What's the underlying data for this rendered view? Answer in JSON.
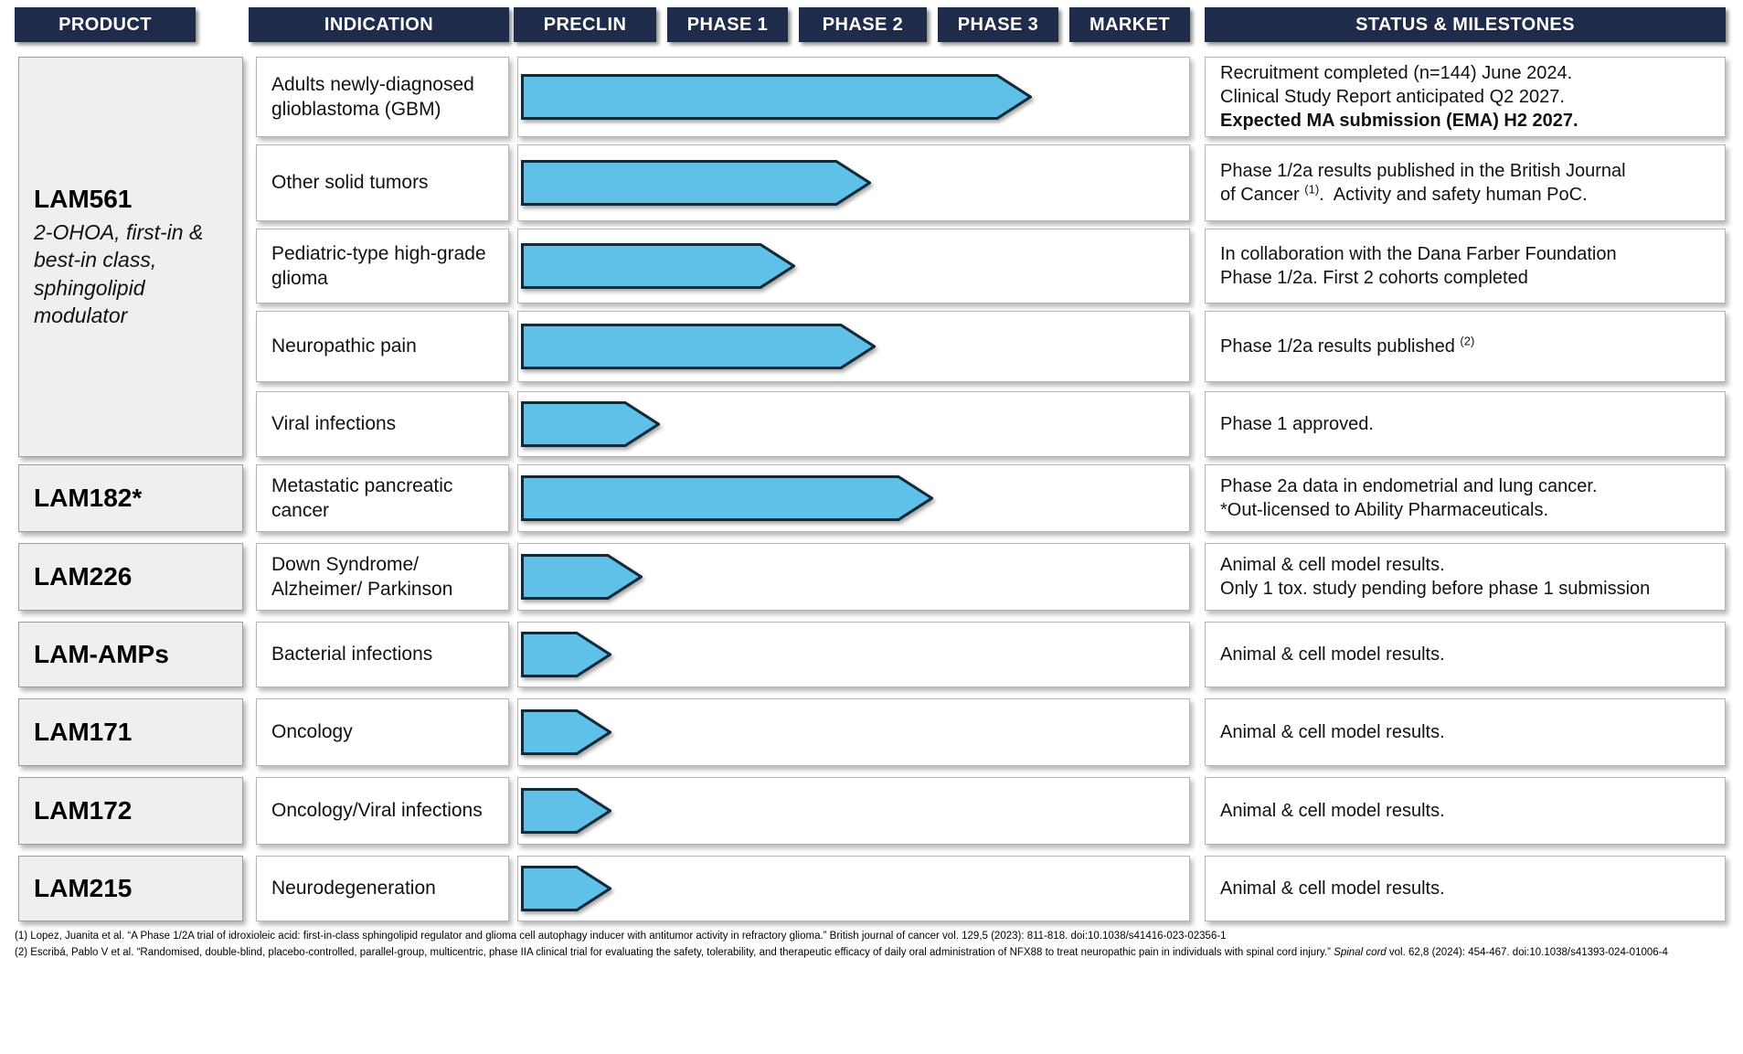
{
  "header": {
    "columns": [
      {
        "key": "product",
        "label": "PRODUCT"
      },
      {
        "key": "indication",
        "label": "INDICATION"
      },
      {
        "key": "preclin",
        "label": "PRECLIN"
      },
      {
        "key": "phase1",
        "label": "PHASE 1"
      },
      {
        "key": "phase2",
        "label": "PHASE 2"
      },
      {
        "key": "phase3",
        "label": "PHASE 3"
      },
      {
        "key": "market",
        "label": "MARKET"
      },
      {
        "key": "status",
        "label": "STATUS & MILESTONES"
      }
    ]
  },
  "products": [
    {
      "name": "LAM561",
      "subtitle": "2-OHOA, first-in & best-in class, sphingolipid modulator",
      "rows": [
        0,
        4
      ]
    },
    {
      "name": "LAM182*",
      "rows": [
        5,
        5
      ]
    },
    {
      "name": "LAM226",
      "rows": [
        6,
        6
      ]
    },
    {
      "name": "LAM-AMPs",
      "rows": [
        7,
        7
      ]
    },
    {
      "name": "LAM171",
      "rows": [
        8,
        8
      ]
    },
    {
      "name": "LAM172",
      "rows": [
        9,
        9
      ]
    },
    {
      "name": "LAM215",
      "rows": [
        10,
        10
      ]
    }
  ],
  "rows": [
    {
      "indication": "Adults newly-diagnosed glioblastoma (GBM)",
      "status": [
        [
          {
            "text": "Recruitment completed (n=144) June 2024."
          }
        ],
        [
          {
            "text": "Clinical Study Report anticipated Q2 2027."
          }
        ],
        [
          {
            "text": "Expected MA submission (EMA) H2 2027.",
            "bold": true
          }
        ]
      ]
    },
    {
      "indication": "Other solid tumors",
      "status": [
        [
          {
            "text": "Phase 1/2a results published in the British Journal"
          }
        ],
        [
          {
            "text": "of Cancer "
          },
          {
            "text": "(1)",
            "sup": true
          },
          {
            "text": ".  Activity and safety human PoC."
          }
        ]
      ]
    },
    {
      "indication": "Pediatric-type high-grade glioma",
      "status": [
        [
          {
            "text": "In collaboration with the Dana Farber Foundation"
          }
        ],
        [
          {
            "text": "Phase 1/2a. First 2 cohorts completed"
          }
        ]
      ]
    },
    {
      "indication": "Neuropathic pain",
      "status": [
        [
          {
            "text": "Phase 1/2a results published "
          },
          {
            "text": "(2)",
            "sup": true
          }
        ]
      ]
    },
    {
      "indication": "Viral infections",
      "status": [
        [
          {
            "text": "Phase 1 approved."
          }
        ]
      ]
    },
    {
      "indication": "Metastatic pancreatic cancer",
      "status": [
        [
          {
            "text": "Phase 2a data in endometrial and lung cancer."
          }
        ],
        [
          {
            "text": "*Out-licensed to Ability Pharmaceuticals."
          }
        ]
      ]
    },
    {
      "indication": "Down Syndrome/ Alzheimer/ Parkinson",
      "status": [
        [
          {
            "text": "Animal & cell model results."
          }
        ],
        [
          {
            "text": "Only 1 tox. study pending before phase 1 submission"
          }
        ]
      ]
    },
    {
      "indication": "Bacterial infections",
      "status": [
        [
          {
            "text": "Animal & cell model results."
          }
        ]
      ]
    },
    {
      "indication": "Oncology",
      "status": [
        [
          {
            "text": "Animal & cell model results."
          }
        ]
      ]
    },
    {
      "indication": "Oncology/Viral infections",
      "status": [
        [
          {
            "text": "Animal & cell model results."
          }
        ]
      ]
    },
    {
      "indication": "Neurodegeneration",
      "status": [
        [
          {
            "text": "Animal & cell model results."
          }
        ]
      ]
    }
  ],
  "footnotes": [
    [
      {
        "text": "(1) Lopez, Juanita et al. “A Phase 1/2A trial of idroxioleic acid: first-in-class sphingolipid regulator and glioma cell autophagy inducer with antitumor activity in refractory glioma.” British journal of cancer vol. 129,5 (2023): 811-818. doi:10.1038/s41416-023-02356-1"
      }
    ],
    [
      {
        "text": "(2) Escribá, Pablo V et al. “Randomised, double-blind, placebo-controlled, parallel-group, multicentric, phase IIA clinical trial for evaluating the safety, tolerability, and therapeutic efficacy of daily oral administration of NFX88 to treat neuropathic pain in individuals with spinal cord injury.” "
      },
      {
        "text": "Spinal cord",
        "italic": true
      },
      {
        "text": " vol. 62,8 (2024): 454-467. doi:10.1038/s41393-024-01006-4"
      }
    ]
  ],
  "colors": {
    "header_bg": "#1F2B4A",
    "arrow_fill": "#5FC0E8",
    "arrow_stroke": "#102A3C",
    "product_box_bg": "#EFEFEF",
    "box_border": "#B5B5B5"
  },
  "chart_data": {
    "type": "bar",
    "title": "Clinical development pipeline by phase",
    "categories": [
      "PRECLIN",
      "PHASE 1",
      "PHASE 2",
      "PHASE 3",
      "MARKET"
    ],
    "value_scale": "phases completed: 1=PRECLIN done, 2=PHASE 1 done, 3=PHASE 2 done, 4=PHASE 3 done, 5=MARKET",
    "legend_position": "none",
    "grid": false,
    "series": [
      {
        "product": "LAM561",
        "indication": "Adults newly-diagnosed glioblastoma (GBM)",
        "progress": 3.8
      },
      {
        "product": "LAM561",
        "indication": "Other solid tumors",
        "progress": 2.6
      },
      {
        "product": "LAM561",
        "indication": "Pediatric-type high-grade glioma",
        "progress": 2.05
      },
      {
        "product": "LAM561",
        "indication": "Neuropathic pain",
        "progress": 2.63
      },
      {
        "product": "LAM561",
        "indication": "Viral infections",
        "progress": 1.03
      },
      {
        "product": "LAM182*",
        "indication": "Metastatic pancreatic cancer",
        "progress": 3.05
      },
      {
        "product": "LAM226",
        "indication": "Down Syndrome/ Alzheimer/ Parkinson",
        "progress": 0.9
      },
      {
        "product": "LAM-AMPs",
        "indication": "Bacterial infections",
        "progress": 0.67
      },
      {
        "product": "LAM171",
        "indication": "Oncology",
        "progress": 0.67
      },
      {
        "product": "LAM172",
        "indication": "Oncology/Viral infections",
        "progress": 0.67
      },
      {
        "product": "LAM215",
        "indication": "Neurodegeneration",
        "progress": 0.67
      }
    ]
  }
}
